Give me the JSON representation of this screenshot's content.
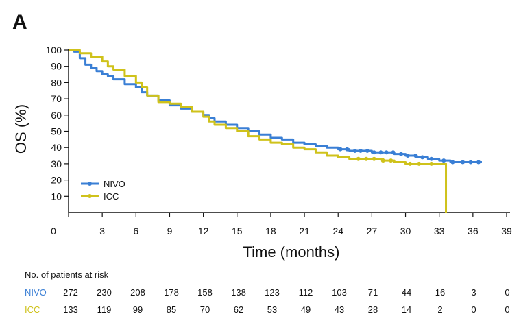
{
  "chart_data": {
    "type": "line",
    "panel_label": "A",
    "ylabel": "OS (%)",
    "xlabel": "Time (months)",
    "xlim": [
      0,
      39
    ],
    "ylim": [
      0,
      100
    ],
    "x_ticks": [
      0,
      3,
      6,
      9,
      12,
      15,
      18,
      21,
      24,
      27,
      30,
      33,
      36,
      39
    ],
    "y_ticks": [
      10,
      20,
      30,
      40,
      50,
      60,
      70,
      80,
      90,
      100
    ],
    "series": [
      {
        "name": "NIVO",
        "color": "#3a7fd5",
        "points": [
          [
            0,
            100
          ],
          [
            0.5,
            99
          ],
          [
            1,
            95
          ],
          [
            1.5,
            91
          ],
          [
            2,
            89
          ],
          [
            2.5,
            87
          ],
          [
            3,
            85
          ],
          [
            3.5,
            84
          ],
          [
            4,
            82
          ],
          [
            5,
            79
          ],
          [
            6,
            77
          ],
          [
            6.5,
            74
          ],
          [
            7,
            72
          ],
          [
            8,
            69
          ],
          [
            9,
            66
          ],
          [
            10,
            64
          ],
          [
            11,
            62
          ],
          [
            12,
            60
          ],
          [
            12.5,
            58
          ],
          [
            13,
            56
          ],
          [
            14,
            54
          ],
          [
            15,
            52
          ],
          [
            16,
            50
          ],
          [
            17,
            48
          ],
          [
            18,
            46
          ],
          [
            19,
            45
          ],
          [
            20,
            43
          ],
          [
            21,
            42
          ],
          [
            22,
            41
          ],
          [
            23,
            40
          ],
          [
            24,
            39
          ],
          [
            25,
            38
          ],
          [
            26,
            38
          ],
          [
            27,
            37
          ],
          [
            28,
            37
          ],
          [
            29,
            36
          ],
          [
            30,
            35
          ],
          [
            31,
            34
          ],
          [
            32,
            33
          ],
          [
            33,
            32
          ],
          [
            34,
            31
          ],
          [
            35,
            31
          ],
          [
            36,
            31
          ],
          [
            36.8,
            31
          ]
        ],
        "censor_x": [
          24.2,
          24.8,
          25.5,
          26,
          26.6,
          27.2,
          27.8,
          28.3,
          28.9,
          29.6,
          30.2,
          30.9,
          31.5,
          32.3,
          33.4,
          34.2,
          35.1,
          35.8,
          36.5
        ]
      },
      {
        "name": "ICC",
        "color": "#cfc21b",
        "points": [
          [
            0,
            100
          ],
          [
            1,
            98
          ],
          [
            2,
            96
          ],
          [
            3,
            93
          ],
          [
            3.5,
            90
          ],
          [
            4,
            88
          ],
          [
            5,
            84
          ],
          [
            6,
            80
          ],
          [
            6.5,
            77
          ],
          [
            7,
            72
          ],
          [
            8,
            68
          ],
          [
            9,
            67
          ],
          [
            10,
            65
          ],
          [
            11,
            62
          ],
          [
            12,
            59
          ],
          [
            12.5,
            56
          ],
          [
            13,
            54
          ],
          [
            14,
            52
          ],
          [
            15,
            50
          ],
          [
            16,
            47
          ],
          [
            17,
            45
          ],
          [
            18,
            43
          ],
          [
            19,
            42
          ],
          [
            20,
            40
          ],
          [
            21,
            39
          ],
          [
            22,
            37
          ],
          [
            23,
            35
          ],
          [
            24,
            34
          ],
          [
            25,
            33
          ],
          [
            26,
            33
          ],
          [
            27,
            33
          ],
          [
            28,
            32
          ],
          [
            29,
            31
          ],
          [
            30,
            30
          ],
          [
            31,
            30
          ],
          [
            32,
            30
          ],
          [
            33,
            30
          ],
          [
            33.6,
            30
          ],
          [
            33.6,
            0
          ]
        ],
        "censor_x": [
          25.8,
          26.5,
          27.2,
          28,
          28.7,
          30.4,
          31.2,
          32.3
        ]
      }
    ],
    "legend": {
      "position": "bottom-left",
      "entries": [
        "NIVO",
        "ICC"
      ]
    },
    "risk_table": {
      "title": "No. of patients at risk",
      "rows": [
        {
          "label": "NIVO",
          "color": "#3a7fd5",
          "values": [
            "272",
            "230",
            "208",
            "178",
            "158",
            "138",
            "123",
            "112",
            "103",
            "71",
            "44",
            "16",
            "3",
            "0"
          ]
        },
        {
          "label": "ICC",
          "color": "#cfc21b",
          "values": [
            "133",
            "119",
            "99",
            "85",
            "70",
            "62",
            "53",
            "49",
            "43",
            "28",
            "14",
            "2",
            "0",
            "0"
          ]
        }
      ]
    }
  }
}
